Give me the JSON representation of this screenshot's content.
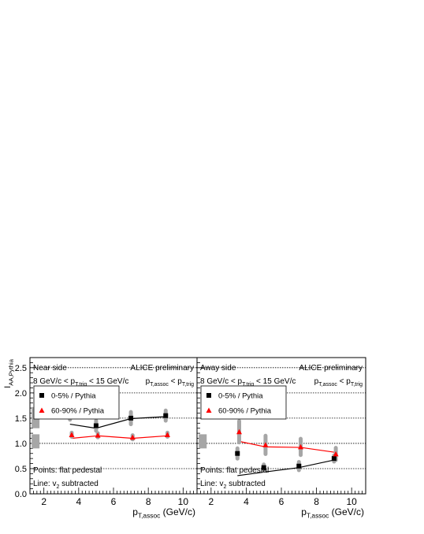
{
  "chart_data": [
    {
      "type": "scatter",
      "panel": "near-side",
      "ylabel": "I_{AA,Pythia}",
      "xlabel": "p_{T,assoc} (GeV/c)",
      "xlim": [
        1.2,
        10.8
      ],
      "ylim": [
        0,
        2.7
      ],
      "xticks": [
        2,
        4,
        6,
        8,
        10
      ],
      "yticks": [
        0.0,
        0.5,
        1.0,
        1.5,
        2.0,
        2.5
      ],
      "dashed_lines_y": [
        0.5,
        1.0,
        1.5,
        2.0,
        2.5
      ],
      "annotations": {
        "side": "Near side",
        "experiment": "ALICE preliminary",
        "trig_range": "8 GeV/c < p_{T,trig} < 15 GeV/c",
        "assoc_cond": "p_{T,assoc} < p_{T,trig}",
        "points_note": "Points: flat pedestal",
        "line_note": "Line: v_{2} subtracted"
      },
      "legend": {
        "placement": "top-left"
      },
      "series": [
        {
          "name": "0-5% / Pythia",
          "marker": "square",
          "color": "#000000",
          "x": [
            3.5,
            5.0,
            7.0,
            9.0
          ],
          "y": [
            1.6,
            1.35,
            1.5,
            1.55
          ],
          "sys_err": [
            0.17,
            0.14,
            0.16,
            0.14
          ],
          "line_y": [
            1.38,
            1.3,
            1.49,
            1.53
          ]
        },
        {
          "name": "60-90% / Pythia",
          "marker": "triangle",
          "color": "#ff0000",
          "x": [
            3.6,
            5.1,
            7.1,
            9.1
          ],
          "y": [
            1.17,
            1.16,
            1.12,
            1.17
          ],
          "sys_err": [
            0.08,
            0.08,
            0.08,
            0.08
          ],
          "line_y": [
            1.1,
            1.15,
            1.1,
            1.15
          ]
        }
      ],
      "scale_uncertainty_boxes": [
        [
          1.3,
          1.72
        ],
        [
          0.9,
          1.18
        ]
      ]
    },
    {
      "type": "scatter",
      "panel": "away-side",
      "xlabel": "p_{T,assoc} (GeV/c)",
      "xlim": [
        1.2,
        10.8
      ],
      "ylim": [
        0,
        2.7
      ],
      "xticks": [
        2,
        4,
        6,
        8,
        10
      ],
      "dashed_lines_y": [
        0.5,
        1.0,
        1.5,
        2.0,
        2.5
      ],
      "annotations": {
        "side": "Away side",
        "experiment": "ALICE preliminary",
        "trig_range": "8 GeV/c < p_{T,trig} < 15 GeV/c",
        "assoc_cond": "p_{T,assoc} < p_{T,trig}",
        "points_note": "Points: flat pedestal",
        "line_note": "Line: v_{2} subtracted"
      },
      "legend": {
        "placement": "top-left"
      },
      "series": [
        {
          "name": "0-5% / Pythia",
          "marker": "square",
          "color": "#000000",
          "x": [
            3.5,
            5.0,
            7.0,
            9.0
          ],
          "y": [
            0.8,
            0.52,
            0.55,
            0.7
          ],
          "sys_err": [
            0.14,
            0.1,
            0.12,
            0.1
          ],
          "line_y": [
            0.36,
            0.43,
            0.52,
            0.67
          ]
        },
        {
          "name": "60-90% / Pythia",
          "marker": "triangle",
          "color": "#ff0000",
          "x": [
            3.6,
            5.1,
            7.1,
            9.1
          ],
          "y": [
            1.23,
            0.97,
            0.93,
            0.79
          ],
          "sys_err": [
            0.25,
            0.22,
            0.2,
            0.16
          ],
          "line_y": [
            1.04,
            0.93,
            0.92,
            0.82
          ]
        }
      ],
      "scale_uncertainty_boxes": [
        [
          0.9,
          1.18
        ]
      ]
    }
  ],
  "colors": {
    "sys_err": "#a6a6a6",
    "scale_box": "#a6a6a6"
  }
}
